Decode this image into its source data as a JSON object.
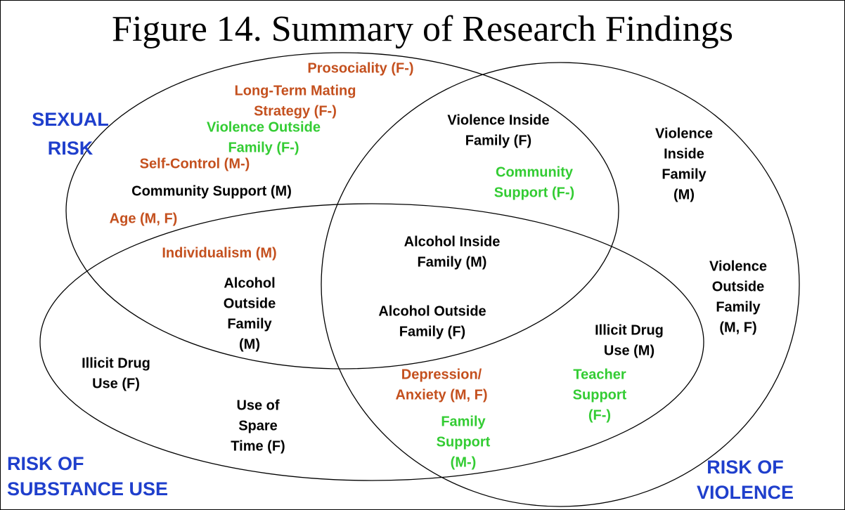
{
  "title": "Figure 14. Summary of Research Findings",
  "sets": [
    {
      "lines": [
        "SEXUAL",
        "RISK"
      ],
      "color": "#1f3fcc"
    },
    {
      "lines": [
        "RISK OF",
        "SUBSTANCE USE"
      ],
      "color": "#1f3fcc"
    },
    {
      "lines": [
        "RISK OF",
        "VIOLENCE"
      ],
      "color": "#1f3fcc"
    }
  ],
  "items": [
    {
      "lines": [
        "Prosociality (F-)"
      ],
      "color": "#c4501e"
    },
    {
      "lines": [
        "Long-Term Mating",
        "Strategy (F-)"
      ],
      "color": "#c4501e"
    },
    {
      "lines": [
        "Violence Outside",
        "Family (F-)"
      ],
      "color": "#33cc33"
    },
    {
      "lines": [
        "Self-Control (M-)"
      ],
      "color": "#c4501e"
    },
    {
      "lines": [
        "Community Support (M)"
      ],
      "color": "#000000"
    },
    {
      "lines": [
        "Age (M, F)"
      ],
      "color": "#c4501e"
    },
    {
      "lines": [
        "Individualism (M)"
      ],
      "color": "#c4501e"
    },
    {
      "lines": [
        "Violence Inside",
        "Family (F)"
      ],
      "color": "#000000"
    },
    {
      "lines": [
        "Community",
        "Support (F-)"
      ],
      "color": "#33cc33"
    },
    {
      "lines": [
        "Violence",
        "Inside",
        "Family",
        "(M)"
      ],
      "color": "#000000"
    },
    {
      "lines": [
        "Alcohol Inside",
        "Family (M)"
      ],
      "color": "#000000"
    },
    {
      "lines": [
        "Alcohol",
        "Outside",
        "Family",
        "(M)"
      ],
      "color": "#000000"
    },
    {
      "lines": [
        "Alcohol Outside",
        "Family (F)"
      ],
      "color": "#000000"
    },
    {
      "lines": [
        "Violence",
        "Outside",
        "Family",
        "(M, F)"
      ],
      "color": "#000000"
    },
    {
      "lines": [
        "Illicit Drug",
        "Use (M)"
      ],
      "color": "#000000"
    },
    {
      "lines": [
        "Illicit Drug",
        "Use (F)"
      ],
      "color": "#000000"
    },
    {
      "lines": [
        "Depression/",
        "Anxiety (M, F)"
      ],
      "color": "#c4501e"
    },
    {
      "lines": [
        "Teacher",
        "Support",
        "(F-)"
      ],
      "color": "#33cc33"
    },
    {
      "lines": [
        "Use of",
        "Spare",
        "Time (F)"
      ],
      "color": "#000000"
    },
    {
      "lines": [
        "Family",
        "Support",
        "(M-)"
      ],
      "color": "#33cc33"
    }
  ]
}
